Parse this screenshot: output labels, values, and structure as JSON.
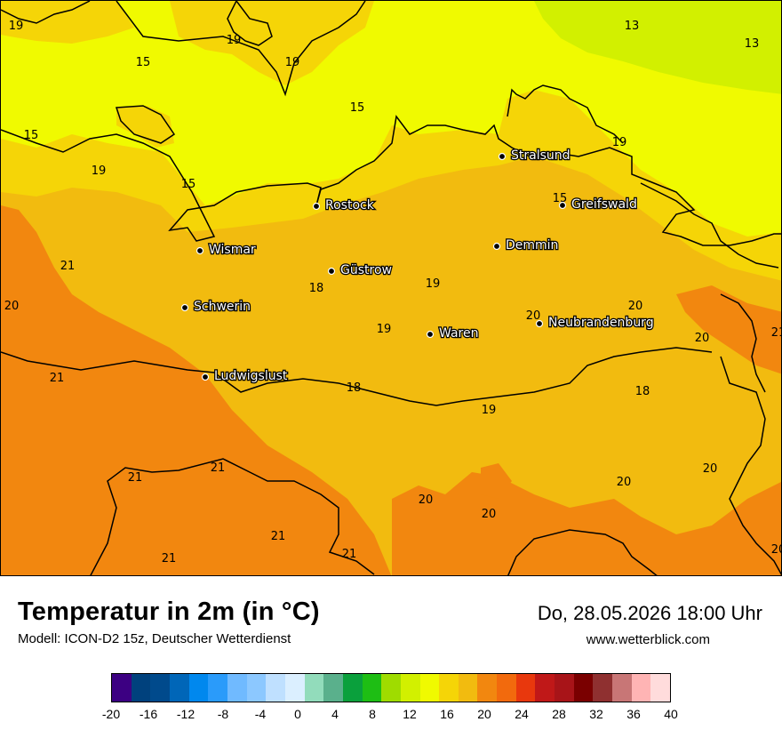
{
  "header": {
    "title": "Temperatur in 2m (in °C)",
    "model": "Modell: ICON-D2 15z, Deutscher Wetterdienst",
    "datetime": "Do, 28.05.2026 18:00 Uhr",
    "website": "www.wetterblick.com"
  },
  "map": {
    "region": "Mecklenburg-Vorpommern",
    "colors": {
      "sea_cool": "#f0fa00",
      "sea_cold": "#d2f000",
      "land_warm": "#f2bb0f",
      "land_mild": "#f5d507",
      "land_hot": "#f2870f",
      "coast_line": "#000000"
    },
    "cities": [
      {
        "name": "Stralsund"
      },
      {
        "name": "Rostock"
      },
      {
        "name": "Greifswald"
      },
      {
        "name": "Wismar"
      },
      {
        "name": "Demmin"
      },
      {
        "name": "Güstrow"
      },
      {
        "name": "Schwerin"
      },
      {
        "name": "Neubrandenburg"
      },
      {
        "name": "Waren"
      },
      {
        "name": "Ludwigslust"
      }
    ],
    "isotherm_labels": [
      "19",
      "19",
      "15",
      "19",
      "15",
      "13",
      "13",
      "15",
      "19",
      "15",
      "19",
      "15",
      "21",
      "20",
      "18",
      "19",
      "20",
      "20",
      "19",
      "20",
      "18",
      "21",
      "18",
      "19",
      "20",
      "20",
      "21",
      "21",
      "20",
      "20",
      "21",
      "21",
      "21",
      "20",
      "21"
    ]
  },
  "legend": {
    "colors": [
      "#3c0082",
      "#00417d",
      "#004a8c",
      "#0066b8",
      "#0088ee",
      "#2a9bfa",
      "#70baff",
      "#8cc8ff",
      "#bfe0ff",
      "#dbefff",
      "#92dcbb",
      "#5ab08c",
      "#0aa03c",
      "#1ebe14",
      "#9fdc00",
      "#d2f000",
      "#f0fa00",
      "#f5d507",
      "#f2bb0f",
      "#f2870f",
      "#f26a0d",
      "#e8380d",
      "#c01818",
      "#a81418",
      "#7a0000",
      "#8f3030",
      "#c87676",
      "#ffb4b4",
      "#ffdcdc"
    ],
    "ticks": [
      "-20",
      "-16",
      "-12",
      "-8",
      "-4",
      "0",
      "4",
      "8",
      "12",
      "16",
      "20",
      "24",
      "28",
      "32",
      "36",
      "40"
    ]
  }
}
